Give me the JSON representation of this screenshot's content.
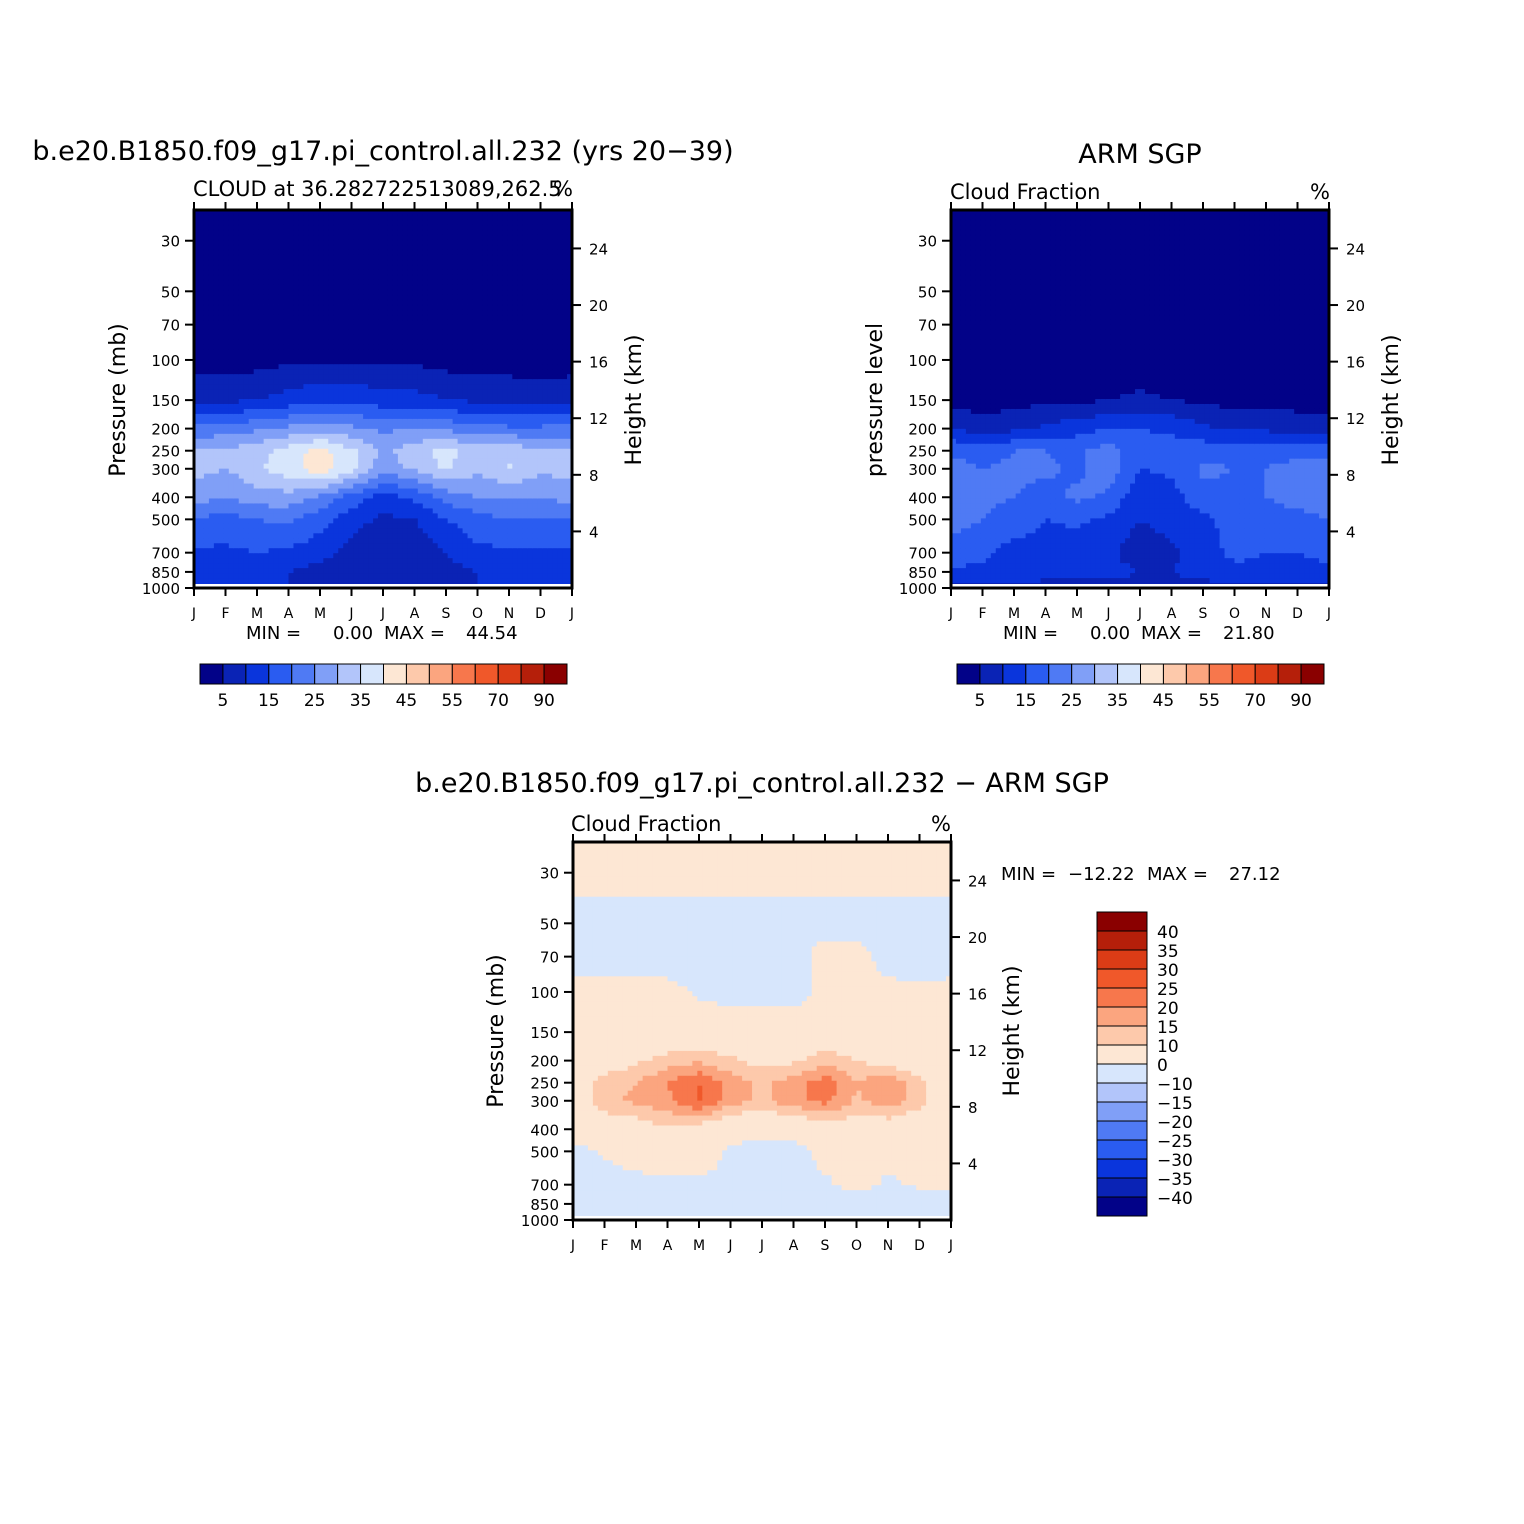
{
  "chart_data": [
    {
      "type": "heatmap",
      "title": "b.e20.B1850.f09_g17.pi_control.all.232 (yrs 20−39)",
      "subtitle": "CLOUD at 36.282722513089,262.5",
      "units": "%",
      "ylabel": "Pressure (mb)",
      "y2label": "Height (km)",
      "stats": {
        "min_label": "MIN =",
        "min": "0.00",
        "max_label": "MAX =",
        "max": "44.54"
      },
      "months": [
        "J",
        "F",
        "M",
        "A",
        "M",
        "J",
        "J",
        "A",
        "S",
        "O",
        "N",
        "D",
        "J"
      ],
      "pressure_ticks": [
        30,
        50,
        70,
        100,
        150,
        200,
        250,
        300,
        400,
        500,
        700,
        850,
        1000
      ],
      "height_ticks": [
        24,
        20,
        16,
        12,
        8,
        4
      ],
      "colorbar": {
        "orientation": "horizontal",
        "labels": [
          "5",
          "15",
          "25",
          "35",
          "45",
          "55",
          "70",
          "90"
        ],
        "colors": [
          "#020288",
          "#0a23b5",
          "#0a35dc",
          "#2a5cf1",
          "#4f7af4",
          "#809ff7",
          "#b2c5fa",
          "#d7e6fc",
          "#fde7d4",
          "#fdc9ab",
          "#fba57f",
          "#f7774c",
          "#f0582a",
          "#db3c16",
          "#b51f0a",
          "#8a0000"
        ]
      },
      "field": {
        "x_months": [
          0,
          1,
          2,
          3,
          4,
          5,
          6,
          7,
          8,
          9,
          10,
          11,
          12
        ],
        "levels_mb": [
          1000,
          850,
          700,
          500,
          400,
          300,
          250,
          200,
          150,
          100,
          70,
          50,
          30
        ],
        "values": [
          [
            10,
            10,
            10,
            10,
            10,
            10,
            10,
            10,
            10,
            10,
            10,
            10,
            10
          ],
          [
            10,
            12,
            12,
            10,
            8,
            5,
            5,
            5,
            8,
            10,
            12,
            12,
            10
          ],
          [
            14,
            14,
            15,
            14,
            12,
            8,
            6,
            6,
            10,
            14,
            14,
            14,
            14
          ],
          [
            20,
            18,
            20,
            21,
            17,
            12,
            9,
            10,
            15,
            18,
            20,
            20,
            20
          ],
          [
            27,
            25,
            28,
            28,
            24,
            18,
            13,
            16,
            22,
            25,
            25,
            25,
            27
          ],
          [
            32,
            30,
            34,
            38,
            43,
            37,
            27,
            31,
            36,
            31,
            36,
            31,
            32
          ],
          [
            30,
            31,
            33,
            37,
            42,
            36,
            29,
            33,
            37,
            32,
            33,
            31,
            30
          ],
          [
            22,
            22,
            24,
            26,
            28,
            26,
            24,
            25,
            24,
            22,
            21,
            21,
            22
          ],
          [
            8,
            9,
            10,
            12,
            14,
            14,
            12,
            12,
            10,
            9,
            8,
            7,
            8
          ],
          [
            3,
            3,
            3,
            4,
            4,
            4,
            4,
            4,
            3,
            3,
            3,
            3,
            3
          ],
          [
            2,
            2,
            2,
            2,
            2,
            2,
            2,
            2,
            2,
            2,
            2,
            2,
            2
          ],
          [
            2,
            2,
            2,
            2,
            2,
            2,
            2,
            2,
            2,
            2,
            2,
            2,
            2
          ],
          [
            2,
            2,
            2,
            2,
            2,
            2,
            2,
            2,
            2,
            2,
            2,
            2,
            2
          ]
        ]
      }
    },
    {
      "type": "heatmap",
      "title": "ARM SGP",
      "subtitle": "Cloud Fraction",
      "units": "%",
      "ylabel": "pressure level",
      "y2label": "Height (km)",
      "stats": {
        "min_label": "MIN =",
        "min": "0.00",
        "max_label": "MAX =",
        "max": "21.80"
      },
      "months": [
        "J",
        "F",
        "M",
        "A",
        "M",
        "J",
        "J",
        "A",
        "S",
        "O",
        "N",
        "D",
        "J"
      ],
      "pressure_ticks": [
        30,
        50,
        70,
        100,
        150,
        200,
        250,
        300,
        400,
        500,
        700,
        850,
        1000
      ],
      "height_ticks": [
        24,
        20,
        16,
        12,
        8,
        4
      ],
      "colorbar": {
        "orientation": "horizontal",
        "labels": [
          "5",
          "15",
          "25",
          "35",
          "45",
          "55",
          "70",
          "90"
        ],
        "colors": [
          "#020288",
          "#0a23b5",
          "#0a35dc",
          "#2a5cf1",
          "#4f7af4",
          "#809ff7",
          "#b2c5fa",
          "#d7e6fc",
          "#fde7d4",
          "#fdc9ab",
          "#fba57f",
          "#f7774c",
          "#f0582a",
          "#db3c16",
          "#b51f0a",
          "#8a0000"
        ]
      },
      "field": {
        "x_months": [
          0,
          1,
          2,
          3,
          4,
          5,
          6,
          7,
          8,
          9,
          10,
          11,
          12
        ],
        "levels_mb": [
          1000,
          850,
          700,
          500,
          400,
          300,
          250,
          200,
          150,
          100,
          70,
          50,
          30
        ],
        "values": [
          [
            8,
            8,
            8,
            8,
            8,
            8,
            8,
            8,
            8,
            8,
            8,
            8,
            8
          ],
          [
            14,
            14,
            14,
            12,
            12,
            12,
            10,
            10,
            12,
            14,
            14,
            14,
            14
          ],
          [
            18,
            16,
            13,
            13,
            12,
            11,
            7,
            9,
            13,
            16,
            15,
            15,
            16
          ],
          [
            22,
            20,
            18,
            15,
            16,
            14,
            10,
            12,
            14,
            17,
            19,
            19,
            20
          ],
          [
            24,
            21,
            20,
            18,
            21,
            19,
            11,
            13,
            18,
            19,
            20,
            21,
            22
          ],
          [
            22,
            20,
            21,
            21,
            19,
            23,
            15,
            16,
            21,
            20,
            20,
            22,
            22
          ],
          [
            19,
            18,
            20,
            20,
            19,
            22,
            17,
            17,
            18,
            18,
            18,
            18,
            18
          ],
          [
            10,
            7,
            9,
            11,
            13,
            15,
            15,
            14,
            11,
            9,
            9,
            8,
            8
          ],
          [
            3,
            3,
            3,
            4,
            4,
            5,
            6,
            5,
            4,
            3,
            3,
            3,
            3
          ],
          [
            2,
            2,
            2,
            2,
            2,
            2,
            2,
            2,
            2,
            2,
            2,
            2,
            2
          ],
          [
            2,
            2,
            2,
            2,
            2,
            2,
            2,
            2,
            2,
            2,
            2,
            2,
            2
          ],
          [
            2,
            2,
            2,
            2,
            2,
            2,
            2,
            2,
            2,
            2,
            2,
            2,
            2
          ],
          [
            2,
            2,
            2,
            2,
            2,
            2,
            2,
            2,
            2,
            2,
            2,
            2,
            2
          ]
        ]
      }
    },
    {
      "type": "heatmap",
      "title": "b.e20.B1850.f09_g17.pi_control.all.232 − ARM SGP",
      "subtitle": "Cloud Fraction",
      "units": "%",
      "ylabel": "Pressure (mb)",
      "y2label": "Height (km)",
      "stats": {
        "min_label": "MIN =",
        "min": "−12.22",
        "max_label": "MAX =",
        "max": "27.12"
      },
      "months": [
        "J",
        "F",
        "M",
        "A",
        "M",
        "J",
        "J",
        "A",
        "S",
        "O",
        "N",
        "D",
        "J"
      ],
      "pressure_ticks": [
        30,
        50,
        70,
        100,
        150,
        200,
        250,
        300,
        400,
        500,
        700,
        850,
        1000
      ],
      "height_ticks": [
        24,
        20,
        16,
        12,
        8,
        4
      ],
      "colorbar": {
        "orientation": "vertical",
        "labels": [
          "40",
          "35",
          "30",
          "25",
          "20",
          "15",
          "10",
          "0",
          "−10",
          "−15",
          "−20",
          "−25",
          "−30",
          "−35",
          "−40"
        ],
        "colors": [
          "#8a0000",
          "#b51f0a",
          "#db3c16",
          "#f0582a",
          "#f7774c",
          "#fba57f",
          "#fdc9ab",
          "#fde7d4",
          "#d7e6fc",
          "#b2c5fa",
          "#809ff7",
          "#4f7af4",
          "#2a5cf1",
          "#0a35dc",
          "#0a23b5",
          "#020288"
        ]
      },
      "field": {
        "x_months": [
          0,
          1,
          2,
          3,
          4,
          5,
          6,
          7,
          8,
          9,
          10,
          11,
          12
        ],
        "levels_mb": [
          1000,
          850,
          700,
          500,
          400,
          300,
          250,
          200,
          150,
          100,
          70,
          50,
          30
        ],
        "values": [
          [
            -3,
            -4,
            -3,
            -3,
            -4,
            -3,
            -3,
            -3,
            -3,
            -3,
            -4,
            -3,
            -3
          ],
          [
            -4,
            -4,
            -4,
            -5,
            -4,
            -4,
            -4,
            -4,
            -4,
            -4,
            -5,
            -4,
            -4
          ],
          [
            -3,
            -3,
            -2,
            -2,
            -1,
            -1,
            -2,
            -1,
            -1,
            2,
            -1,
            1,
            1
          ],
          [
            -2,
            1,
            3,
            6,
            3,
            -1,
            -3,
            -3,
            2,
            3,
            2,
            2,
            1
          ],
          [
            3,
            4,
            6,
            9,
            6,
            3,
            2,
            3,
            5,
            6,
            5,
            4,
            3
          ],
          [
            5,
            14,
            16,
            19,
            26,
            17,
            14,
            18,
            22,
            14,
            18,
            12,
            4
          ],
          [
            4,
            13,
            15,
            20,
            25,
            18,
            14,
            17,
            23,
            15,
            19,
            12,
            4
          ],
          [
            2,
            5,
            9,
            12,
            14,
            11,
            8,
            9,
            13,
            10,
            7,
            5,
            2
          ],
          [
            3,
            3,
            4,
            4,
            4,
            4,
            3,
            3,
            4,
            4,
            4,
            3,
            3
          ],
          [
            2,
            2,
            2,
            2,
            -1,
            -2,
            -2,
            -2,
            1,
            3,
            2,
            1,
            2
          ],
          [
            -3,
            -3,
            -3,
            -3,
            -3,
            -3,
            -3,
            -3,
            3,
            3,
            -3,
            -3,
            -3
          ],
          [
            -3,
            -3,
            -3,
            -3,
            -3,
            -3,
            -3,
            -3,
            -3,
            -3,
            -3,
            -3,
            -3
          ],
          [
            3,
            3,
            3,
            3,
            3,
            3,
            3,
            3,
            3,
            3,
            3,
            3,
            3
          ]
        ]
      }
    }
  ]
}
